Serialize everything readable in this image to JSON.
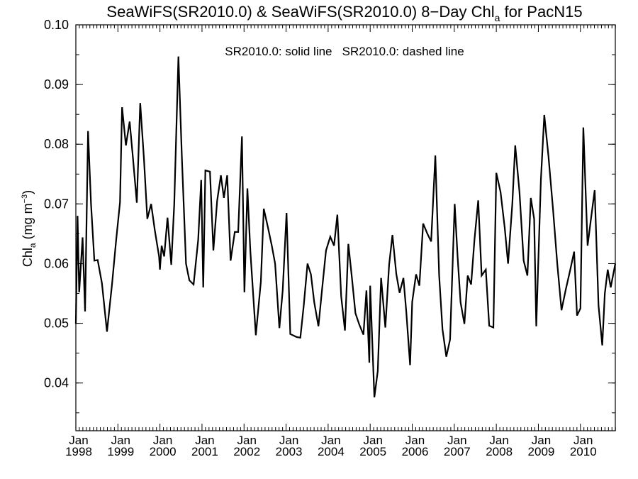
{
  "chart_data": {
    "type": "line",
    "title": {
      "prefix": "SeaWiFS(SR2010.0) & SeaWiFS(SR2010.0) 8−Day Chl",
      "subscript": "a",
      "suffix": " for PacN15"
    },
    "annotation": "SR2010.0: solid line   SR2010.0: dashed line",
    "ylabel": {
      "main": "Chl",
      "subscript": "a",
      "units_prefix": " (mg m",
      "superscript": "−3",
      "units_suffix": ")"
    },
    "xlim": [
      1998.0,
      2010.83
    ],
    "ylim": [
      0.032,
      0.1
    ],
    "y_ticks": [
      0.04,
      0.05,
      0.06,
      0.07,
      0.08,
      0.09,
      0.1
    ],
    "y_tick_labels": [
      "0.04",
      "0.05",
      "0.06",
      "0.07",
      "0.08",
      "0.09",
      "0.10"
    ],
    "x_ticks": [
      1998,
      1999,
      2000,
      2001,
      2002,
      2003,
      2004,
      2005,
      2006,
      2007,
      2008,
      2009,
      2010
    ],
    "x_tick_labels": [
      [
        "Jan",
        "1998"
      ],
      [
        "Jan",
        "1999"
      ],
      [
        "Jan",
        "2000"
      ],
      [
        "Jan",
        "2001"
      ],
      [
        "Jan",
        "2002"
      ],
      [
        "Jan",
        "2003"
      ],
      [
        "Jan",
        "2004"
      ],
      [
        "Jan",
        "2005"
      ],
      [
        "Jan",
        "2006"
      ],
      [
        "Jan",
        "2007"
      ],
      [
        "Jan",
        "2008"
      ],
      [
        "Jan",
        "2009"
      ],
      [
        "Jan",
        "2010"
      ]
    ],
    "series": [
      {
        "style": "solid",
        "color": "#000000",
        "points": [
          [
            1998.0,
            0.0499
          ],
          [
            1998.04,
            0.068
          ],
          [
            1998.08,
            0.0552
          ],
          [
            1998.16,
            0.0644
          ],
          [
            1998.22,
            0.052
          ],
          [
            1998.29,
            0.0822
          ],
          [
            1998.36,
            0.07
          ],
          [
            1998.44,
            0.0605
          ],
          [
            1998.52,
            0.0606
          ],
          [
            1998.62,
            0.0567
          ],
          [
            1998.74,
            0.0486
          ],
          [
            1998.86,
            0.0565
          ],
          [
            1998.96,
            0.064
          ],
          [
            1999.05,
            0.0703
          ],
          [
            1999.1,
            0.0862
          ],
          [
            1999.19,
            0.0798
          ],
          [
            1999.28,
            0.0838
          ],
          [
            1999.36,
            0.0775
          ],
          [
            1999.45,
            0.0702
          ],
          [
            1999.53,
            0.0869
          ],
          [
            1999.62,
            0.0775
          ],
          [
            1999.7,
            0.0675
          ],
          [
            1999.79,
            0.07
          ],
          [
            1999.88,
            0.0655
          ],
          [
            1999.98,
            0.0612
          ],
          [
            2000.0,
            0.059
          ],
          [
            2000.04,
            0.063
          ],
          [
            2000.1,
            0.0612
          ],
          [
            2000.18,
            0.0677
          ],
          [
            2000.27,
            0.0598
          ],
          [
            2000.34,
            0.07
          ],
          [
            2000.44,
            0.0947
          ],
          [
            2000.52,
            0.078
          ],
          [
            2000.62,
            0.06
          ],
          [
            2000.7,
            0.0572
          ],
          [
            2000.8,
            0.0565
          ],
          [
            2000.91,
            0.064
          ],
          [
            2000.98,
            0.074
          ],
          [
            2001.03,
            0.056
          ],
          [
            2001.08,
            0.0756
          ],
          [
            2001.19,
            0.0754
          ],
          [
            2001.27,
            0.0622
          ],
          [
            2001.36,
            0.0705
          ],
          [
            2001.45,
            0.0748
          ],
          [
            2001.52,
            0.071
          ],
          [
            2001.6,
            0.0748
          ],
          [
            2001.68,
            0.0605
          ],
          [
            2001.78,
            0.0653
          ],
          [
            2001.86,
            0.0653
          ],
          [
            2001.95,
            0.0813
          ],
          [
            2002.01,
            0.0552
          ],
          [
            2002.08,
            0.0726
          ],
          [
            2002.15,
            0.062
          ],
          [
            2002.28,
            0.048
          ],
          [
            2002.4,
            0.057
          ],
          [
            2002.47,
            0.0692
          ],
          [
            2002.57,
            0.066
          ],
          [
            2002.66,
            0.063
          ],
          [
            2002.74,
            0.06
          ],
          [
            2002.84,
            0.0492
          ],
          [
            2002.92,
            0.0555
          ],
          [
            2003.01,
            0.0685
          ],
          [
            2003.1,
            0.0482
          ],
          [
            2003.25,
            0.0477
          ],
          [
            2003.34,
            0.0476
          ],
          [
            2003.42,
            0.053
          ],
          [
            2003.51,
            0.06
          ],
          [
            2003.59,
            0.0582
          ],
          [
            2003.67,
            0.0535
          ],
          [
            2003.77,
            0.0495
          ],
          [
            2003.86,
            0.056
          ],
          [
            2003.95,
            0.0622
          ],
          [
            2004.05,
            0.0645
          ],
          [
            2004.14,
            0.063
          ],
          [
            2004.22,
            0.0682
          ],
          [
            2004.31,
            0.0545
          ],
          [
            2004.4,
            0.0488
          ],
          [
            2004.48,
            0.0633
          ],
          [
            2004.56,
            0.058
          ],
          [
            2004.65,
            0.0517
          ],
          [
            2004.74,
            0.0498
          ],
          [
            2004.84,
            0.0481
          ],
          [
            2004.91,
            0.0555
          ],
          [
            2004.98,
            0.0434
          ],
          [
            2005.0,
            0.0563
          ],
          [
            2005.1,
            0.0376
          ],
          [
            2005.18,
            0.042
          ],
          [
            2005.26,
            0.0576
          ],
          [
            2005.36,
            0.0493
          ],
          [
            2005.45,
            0.0598
          ],
          [
            2005.53,
            0.0648
          ],
          [
            2005.62,
            0.0583
          ],
          [
            2005.7,
            0.0551
          ],
          [
            2005.79,
            0.0576
          ],
          [
            2005.86,
            0.0518
          ],
          [
            2005.95,
            0.043
          ],
          [
            2006.0,
            0.0536
          ],
          [
            2006.09,
            0.0582
          ],
          [
            2006.17,
            0.0563
          ],
          [
            2006.26,
            0.0667
          ],
          [
            2006.36,
            0.065
          ],
          [
            2006.45,
            0.0637
          ],
          [
            2006.55,
            0.0781
          ],
          [
            2006.64,
            0.058
          ],
          [
            2006.72,
            0.049
          ],
          [
            2006.81,
            0.0444
          ],
          [
            2006.9,
            0.0473
          ],
          [
            2007.01,
            0.07
          ],
          [
            2007.08,
            0.061
          ],
          [
            2007.15,
            0.0535
          ],
          [
            2007.24,
            0.0499
          ],
          [
            2007.32,
            0.058
          ],
          [
            2007.4,
            0.0565
          ],
          [
            2007.48,
            0.064
          ],
          [
            2007.57,
            0.0706
          ],
          [
            2007.65,
            0.058
          ],
          [
            2007.75,
            0.059
          ],
          [
            2007.83,
            0.0496
          ],
          [
            2007.93,
            0.0493
          ],
          [
            2008.0,
            0.0752
          ],
          [
            2008.1,
            0.072
          ],
          [
            2008.2,
            0.066
          ],
          [
            2008.28,
            0.06
          ],
          [
            2008.38,
            0.07
          ],
          [
            2008.45,
            0.0798
          ],
          [
            2008.55,
            0.072
          ],
          [
            2008.65,
            0.0605
          ],
          [
            2008.74,
            0.058
          ],
          [
            2008.82,
            0.071
          ],
          [
            2008.9,
            0.0675
          ],
          [
            2008.95,
            0.0495
          ],
          [
            2009.06,
            0.074
          ],
          [
            2009.14,
            0.0849
          ],
          [
            2009.24,
            0.078
          ],
          [
            2009.35,
            0.069
          ],
          [
            2009.45,
            0.06
          ],
          [
            2009.55,
            0.0522
          ],
          [
            2009.65,
            0.0556
          ],
          [
            2009.76,
            0.059
          ],
          [
            2009.85,
            0.062
          ],
          [
            2009.92,
            0.0513
          ],
          [
            2010.0,
            0.0525
          ],
          [
            2010.07,
            0.0828
          ],
          [
            2010.17,
            0.063
          ],
          [
            2010.26,
            0.068
          ],
          [
            2010.34,
            0.0723
          ],
          [
            2010.43,
            0.053
          ],
          [
            2010.52,
            0.0463
          ],
          [
            2010.58,
            0.055
          ],
          [
            2010.65,
            0.059
          ],
          [
            2010.72,
            0.056
          ],
          [
            2010.83,
            0.06
          ]
        ]
      }
    ]
  }
}
